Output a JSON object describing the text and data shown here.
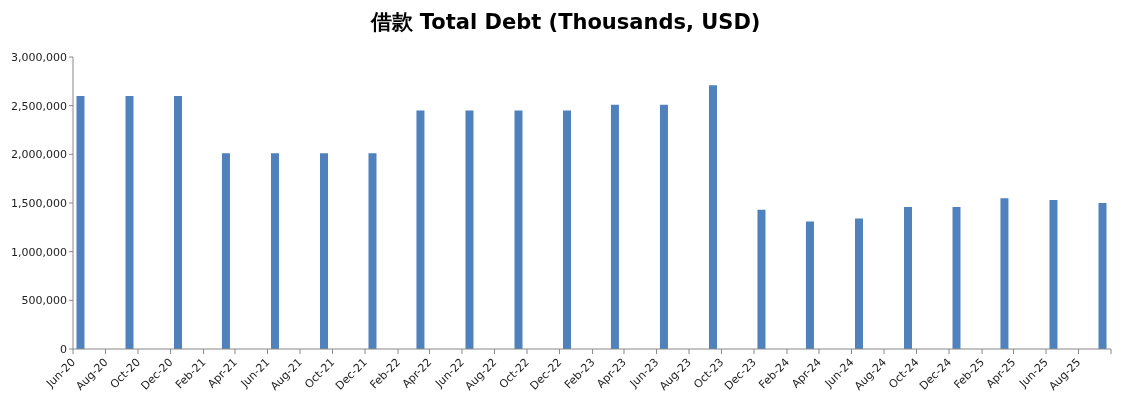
{
  "chart_data": {
    "type": "bar",
    "title": "借款 Total Debt (Thousands, USD)",
    "x": [
      "2020-06-15",
      "2020-09-15",
      "2020-12-15",
      "2021-03-15",
      "2021-06-15",
      "2021-09-15",
      "2021-12-15",
      "2022-03-15",
      "2022-06-15",
      "2022-09-15",
      "2022-12-15",
      "2023-03-15",
      "2023-06-15",
      "2023-09-15",
      "2023-12-15",
      "2024-03-15",
      "2024-06-15",
      "2024-09-15",
      "2024-12-15",
      "2025-03-15",
      "2025-06-15",
      "2025-09-15"
    ],
    "values": [
      2600000,
      2600000,
      2600000,
      2010000,
      2010000,
      2010000,
      2010000,
      2450000,
      2450000,
      2450000,
      2450000,
      2510000,
      2510000,
      2710000,
      1430000,
      1310000,
      1340000,
      1460000,
      1460000,
      1550000,
      1530000,
      1500000
    ],
    "color": "#4f81bd",
    "xlim": [
      "2020-06",
      "2025-10"
    ],
    "xticks": [
      {
        "value": "2020-06",
        "label": "Jun-20"
      },
      {
        "value": "2020-08",
        "label": "Aug-20"
      },
      {
        "value": "2020-10",
        "label": "Oct-20"
      },
      {
        "value": "2020-12",
        "label": "Dec-20"
      },
      {
        "value": "2021-02",
        "label": "Feb-21"
      },
      {
        "value": "2021-04",
        "label": "Apr-21"
      },
      {
        "value": "2021-06",
        "label": "Jun-21"
      },
      {
        "value": "2021-08",
        "label": "Aug-21"
      },
      {
        "value": "2021-10",
        "label": "Oct-21"
      },
      {
        "value": "2021-12",
        "label": "Dec-21"
      },
      {
        "value": "2022-02",
        "label": "Feb-22"
      },
      {
        "value": "2022-04",
        "label": "Apr-22"
      },
      {
        "value": "2022-06",
        "label": "Jun-22"
      },
      {
        "value": "2022-08",
        "label": "Aug-22"
      },
      {
        "value": "2022-10",
        "label": "Oct-22"
      },
      {
        "value": "2022-12",
        "label": "Dec-22"
      },
      {
        "value": "2023-02",
        "label": "Feb-23"
      },
      {
        "value": "2023-04",
        "label": "Apr-23"
      },
      {
        "value": "2023-06",
        "label": "Jun-23"
      },
      {
        "value": "2023-08",
        "label": "Aug-23"
      },
      {
        "value": "2023-10",
        "label": "Oct-23"
      },
      {
        "value": "2023-12",
        "label": "Dec-23"
      },
      {
        "value": "2024-02",
        "label": "Feb-24"
      },
      {
        "value": "2024-04",
        "label": "Apr-24"
      },
      {
        "value": "2024-06",
        "label": "Jun-24"
      },
      {
        "value": "2024-08",
        "label": "Aug-24"
      },
      {
        "value": "2024-10",
        "label": "Oct-24"
      },
      {
        "value": "2024-12",
        "label": "Dec-24"
      },
      {
        "value": "2025-02",
        "label": "Feb-25"
      },
      {
        "value": "2025-04",
        "label": "Apr-25"
      },
      {
        "value": "2025-06",
        "label": "Jun-25"
      },
      {
        "value": "2025-08",
        "label": "Aug-25"
      },
      {
        "value": "2025-10",
        "label": null
      }
    ],
    "ylim": [
      0,
      3000000
    ],
    "yticks": [
      {
        "value": 0,
        "label": "0"
      },
      {
        "value": 500000,
        "label": "500,000"
      },
      {
        "value": 1000000,
        "label": "1,000,000"
      },
      {
        "value": 1500000,
        "label": "1,500,000"
      },
      {
        "value": 2000000,
        "label": "2,000,000"
      },
      {
        "value": 2500000,
        "label": "2,500,000"
      },
      {
        "value": 3000000,
        "label": "3,000,000"
      }
    ],
    "grid": false,
    "legend": false
  }
}
